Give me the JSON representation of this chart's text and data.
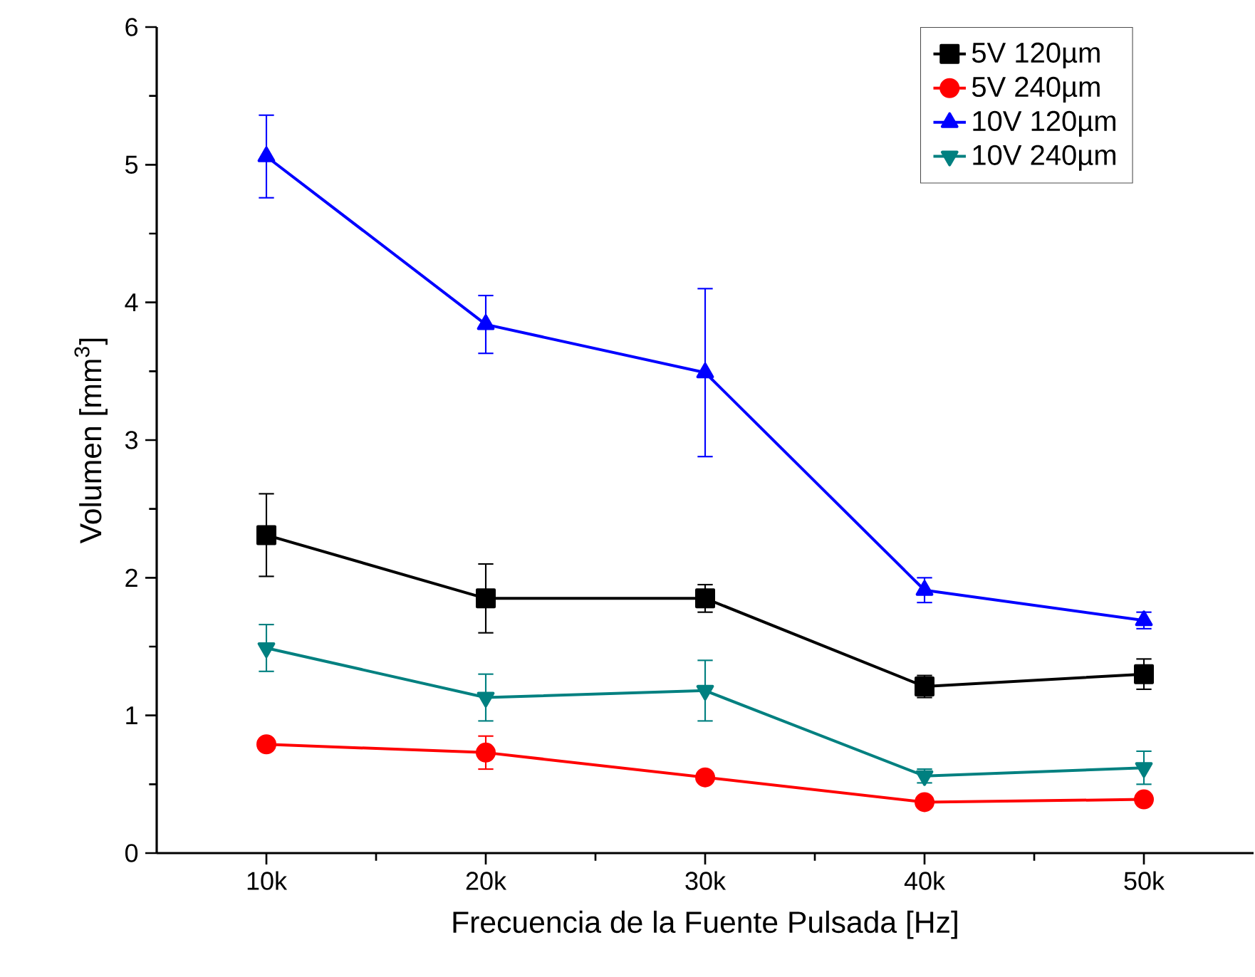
{
  "chart_data": {
    "type": "line",
    "xlabel": "Frecuencia de la Fuente Pulsada [Hz]",
    "ylabel": "Volumen [mm$^{3}$]",
    "x": [
      10000,
      20000,
      30000,
      40000,
      50000
    ],
    "xlim": [
      5000,
      55000
    ],
    "xticks": [
      {
        "value": 10000,
        "label": "10k"
      },
      {
        "value": 20000,
        "label": "20k"
      },
      {
        "value": 30000,
        "label": "30k"
      },
      {
        "value": 40000,
        "label": "40k"
      },
      {
        "value": 50000,
        "label": "50k"
      }
    ],
    "ylim": [
      0,
      6
    ],
    "yticks": [
      0,
      1,
      2,
      3,
      4,
      5,
      6
    ],
    "legend": "top right",
    "grid": false,
    "line_style": "solid",
    "series": [
      {
        "name": "5V 120µm",
        "color": "#000000",
        "marker": "square",
        "values": [
          2.31,
          1.85,
          1.85,
          1.21,
          1.3
        ],
        "errors": [
          0.3,
          0.25,
          0.1,
          0.08,
          0.11
        ]
      },
      {
        "name": "5V 240µm",
        "color": "#ff0000",
        "marker": "circle",
        "values": [
          0.79,
          0.73,
          0.55,
          0.37,
          0.39
        ],
        "errors": [
          null,
          0.12,
          null,
          null,
          null
        ]
      },
      {
        "name": "10V 120µm",
        "color": "#0000ff",
        "marker": "triangle",
        "values": [
          5.06,
          3.84,
          3.49,
          1.91,
          1.69
        ],
        "errors": [
          0.3,
          0.21,
          0.61,
          0.09,
          0.06
        ]
      },
      {
        "name": "10V 240µm",
        "color": "#008080",
        "marker": "triangle-down",
        "values": [
          1.49,
          1.13,
          1.18,
          0.56,
          0.62
        ],
        "errors": [
          0.17,
          0.17,
          0.22,
          0.05,
          0.12
        ]
      }
    ]
  }
}
